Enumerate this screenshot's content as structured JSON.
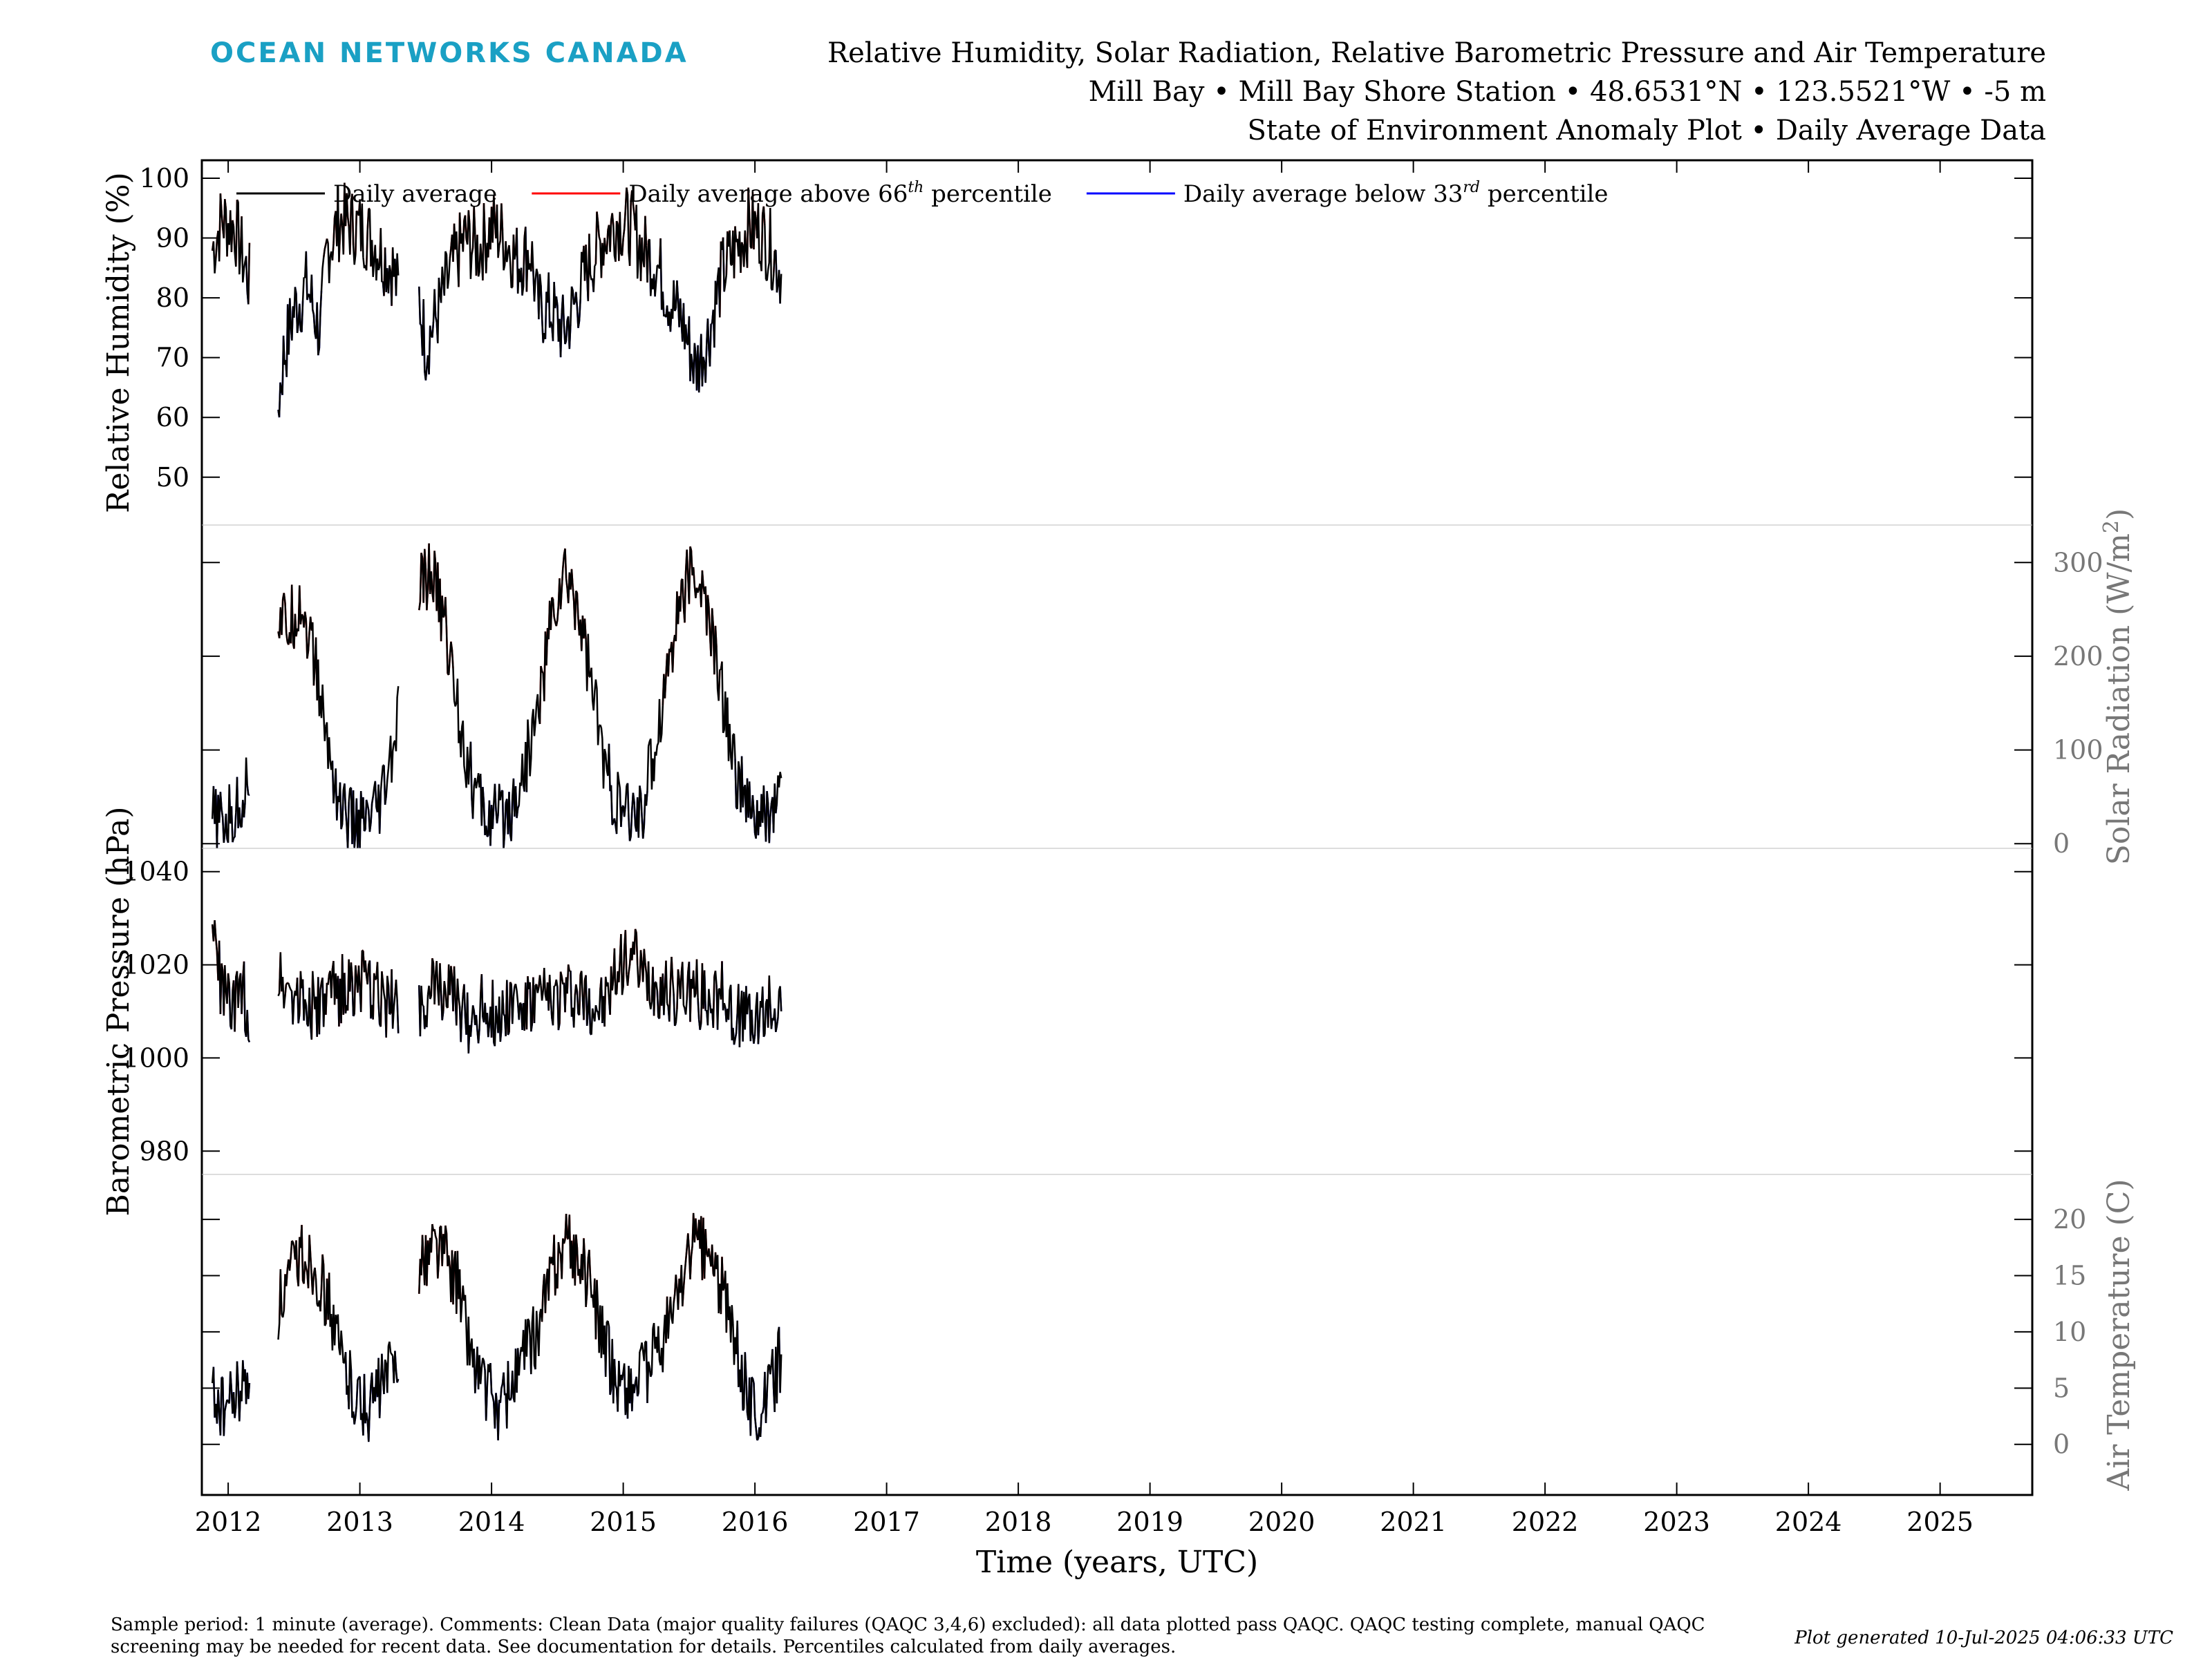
{
  "header": {
    "brand": "OCEAN NETWORKS CANADA",
    "title_line1": "Relative Humidity, Solar Radiation, Relative Barometric Pressure and Air Temperature",
    "title_line2": "Mill Bay • Mill Bay Shore Station • 48.6531°N • 123.5521°W • -5 m",
    "title_line3": "State of Environment Anomaly Plot • Daily Average Data"
  },
  "footer": {
    "note": "Sample period: 1 minute (average). Comments: Clean Data (major quality failures (QAQC 3,4,6) excluded): all data plotted pass QAQC. QAQC testing complete, manual QAQC screening may be needed for recent data. See documentation for details. Percentiles calculated from daily averages.",
    "generated": "Plot generated 10-Jul-2025 04:06:33 UTC"
  },
  "colors": {
    "average": "#000000",
    "above": "#ff0000",
    "below": "#0000ff",
    "right_axis": "#777777",
    "brand": "#1aa0c4"
  },
  "chart_data": {
    "type": "line",
    "xlabel": "Time (years, UTC)",
    "x_ticks": [
      "2012",
      "2013",
      "2014",
      "2015",
      "2016",
      "2017",
      "2018",
      "2019",
      "2020",
      "2021",
      "2022",
      "2023",
      "2024",
      "2025"
    ],
    "xlim": [
      2011.8,
      2025.7
    ],
    "legend": {
      "placement": "top-left",
      "entries": [
        {
          "label": "Daily average",
          "sup": "",
          "suffix": "",
          "color": "#000000"
        },
        {
          "label": "Daily average above 66",
          "sup": "th",
          "suffix": " percentile",
          "color": "#ff0000"
        },
        {
          "label": "Daily average below 33",
          "sup": "rd",
          "suffix": " percentile",
          "color": "#0000ff"
        }
      ]
    },
    "panels": [
      {
        "id": "rh",
        "label": "Relative Humidity (%)",
        "label_sup": "",
        "label_after": "",
        "side": "left",
        "ticks": [
          50,
          60,
          70,
          80,
          90,
          100
        ],
        "ylim": [
          42,
          103
        ],
        "points": [
          [
            2011.88,
            88
          ],
          [
            2011.95,
            93
          ],
          [
            2012.05,
            92
          ],
          [
            2012.12,
            86
          ],
          [
            2012.17,
            82
          ],
          [
            2012.38,
            62
          ],
          [
            2012.42,
            70
          ],
          [
            2012.5,
            78
          ],
          [
            2012.6,
            82
          ],
          [
            2012.7,
            74
          ],
          [
            2012.75,
            88
          ],
          [
            2012.85,
            93
          ],
          [
            2012.95,
            92
          ],
          [
            2013.05,
            91
          ],
          [
            2013.15,
            88
          ],
          [
            2013.25,
            85
          ],
          [
            2013.3,
            80
          ],
          [
            2013.45,
            80
          ],
          [
            2013.5,
            72
          ],
          [
            2013.6,
            78
          ],
          [
            2013.7,
            85
          ],
          [
            2013.8,
            90
          ],
          [
            2013.9,
            88
          ],
          [
            2014.0,
            92
          ],
          [
            2014.1,
            90
          ],
          [
            2014.2,
            86
          ],
          [
            2014.3,
            88
          ],
          [
            2014.35,
            78
          ],
          [
            2014.45,
            78
          ],
          [
            2014.55,
            74
          ],
          [
            2014.65,
            80
          ],
          [
            2014.75,
            86
          ],
          [
            2014.85,
            90
          ],
          [
            2014.95,
            93
          ],
          [
            2015.05,
            92
          ],
          [
            2015.15,
            88
          ],
          [
            2015.25,
            86
          ],
          [
            2015.35,
            80
          ],
          [
            2015.45,
            76
          ],
          [
            2015.55,
            68
          ],
          [
            2015.65,
            74
          ],
          [
            2015.75,
            84
          ],
          [
            2015.85,
            88
          ],
          [
            2015.95,
            92
          ],
          [
            2016.05,
            91
          ],
          [
            2016.15,
            87
          ],
          [
            2016.2,
            84
          ]
        ]
      },
      {
        "id": "solar",
        "label": "Solar Radiation (W/m",
        "label_sup": "2",
        "label_after": ")",
        "side": "right",
        "ticks": [
          0,
          100,
          200,
          300
        ],
        "ylim": [
          -5,
          340
        ],
        "points": [
          [
            2011.88,
            25
          ],
          [
            2011.95,
            20
          ],
          [
            2012.05,
            30
          ],
          [
            2012.12,
            55
          ],
          [
            2012.17,
            85
          ],
          [
            2012.38,
            240
          ],
          [
            2012.45,
            230
          ],
          [
            2012.55,
            260
          ],
          [
            2012.65,
            200
          ],
          [
            2012.75,
            110
          ],
          [
            2012.85,
            40
          ],
          [
            2012.95,
            20
          ],
          [
            2013.05,
            18
          ],
          [
            2013.15,
            35
          ],
          [
            2013.25,
            95
          ],
          [
            2013.3,
            140
          ],
          [
            2013.45,
            270
          ],
          [
            2013.55,
            290
          ],
          [
            2013.65,
            230
          ],
          [
            2013.75,
            140
          ],
          [
            2013.85,
            65
          ],
          [
            2013.95,
            30
          ],
          [
            2014.05,
            25
          ],
          [
            2014.15,
            40
          ],
          [
            2014.25,
            80
          ],
          [
            2014.35,
            140
          ],
          [
            2014.45,
            235
          ],
          [
            2014.55,
            285
          ],
          [
            2014.65,
            260
          ],
          [
            2014.75,
            180
          ],
          [
            2014.85,
            90
          ],
          [
            2014.95,
            40
          ],
          [
            2015.05,
            25
          ],
          [
            2015.15,
            40
          ],
          [
            2015.25,
            110
          ],
          [
            2015.35,
            200
          ],
          [
            2015.45,
            270
          ],
          [
            2015.55,
            290
          ],
          [
            2015.65,
            240
          ],
          [
            2015.75,
            160
          ],
          [
            2015.85,
            80
          ],
          [
            2015.95,
            35
          ],
          [
            2016.05,
            22
          ],
          [
            2016.15,
            40
          ],
          [
            2016.2,
            70
          ]
        ]
      },
      {
        "id": "pressure",
        "label": "Barometric Pressure (hPa)",
        "label_sup": "",
        "label_after": "",
        "side": "left",
        "ticks": [
          980,
          1000,
          1020,
          1040
        ],
        "ylim": [
          975,
          1045
        ],
        "points": [
          [
            2011.88,
            1028
          ],
          [
            2011.95,
            1015
          ],
          [
            2012.05,
            1010
          ],
          [
            2012.12,
            1015
          ],
          [
            2012.17,
            1005
          ],
          [
            2012.38,
            1018
          ],
          [
            2012.5,
            1014
          ],
          [
            2012.6,
            1012
          ],
          [
            2012.7,
            1010
          ],
          [
            2012.8,
            1014
          ],
          [
            2012.9,
            1015
          ],
          [
            2013.0,
            1016
          ],
          [
            2013.1,
            1014
          ],
          [
            2013.2,
            1012
          ],
          [
            2013.3,
            1013
          ],
          [
            2013.45,
            1012
          ],
          [
            2013.55,
            1014
          ],
          [
            2013.65,
            1016
          ],
          [
            2013.75,
            1010
          ],
          [
            2013.85,
            1008
          ],
          [
            2013.95,
            1012
          ],
          [
            2014.05,
            1008
          ],
          [
            2014.15,
            1013
          ],
          [
            2014.25,
            1010
          ],
          [
            2014.35,
            1012
          ],
          [
            2014.45,
            1012
          ],
          [
            2014.55,
            1014
          ],
          [
            2014.65,
            1013
          ],
          [
            2014.75,
            1012
          ],
          [
            2014.85,
            1010
          ],
          [
            2014.95,
            1018
          ],
          [
            2015.05,
            1024
          ],
          [
            2015.15,
            1017
          ],
          [
            2015.25,
            1016
          ],
          [
            2015.35,
            1014
          ],
          [
            2015.45,
            1015
          ],
          [
            2015.55,
            1014
          ],
          [
            2015.65,
            1013
          ],
          [
            2015.75,
            1014
          ],
          [
            2015.85,
            1010
          ],
          [
            2015.95,
            1008
          ],
          [
            2016.05,
            1008
          ],
          [
            2016.15,
            1012
          ],
          [
            2016.2,
            1010
          ]
        ]
      },
      {
        "id": "temp",
        "label": "Air Temperature (C)",
        "label_sup": "",
        "label_after": "",
        "side": "right",
        "ticks": [
          0,
          5,
          10,
          15,
          20
        ],
        "ylim": [
          -4.5,
          24
        ],
        "points": [
          [
            2011.88,
            5
          ],
          [
            2011.95,
            3
          ],
          [
            2012.05,
            4
          ],
          [
            2012.12,
            5
          ],
          [
            2012.17,
            6
          ],
          [
            2012.38,
            12
          ],
          [
            2012.45,
            14
          ],
          [
            2012.55,
            17
          ],
          [
            2012.65,
            16
          ],
          [
            2012.75,
            13
          ],
          [
            2012.85,
            8
          ],
          [
            2012.95,
            5
          ],
          [
            2013.05,
            3
          ],
          [
            2013.15,
            5
          ],
          [
            2013.25,
            7
          ],
          [
            2013.3,
            9
          ],
          [
            2013.45,
            15
          ],
          [
            2013.55,
            18
          ],
          [
            2013.65,
            17
          ],
          [
            2013.75,
            14
          ],
          [
            2013.85,
            8
          ],
          [
            2013.95,
            5
          ],
          [
            2014.05,
            3
          ],
          [
            2014.15,
            5
          ],
          [
            2014.25,
            8
          ],
          [
            2014.35,
            10
          ],
          [
            2014.45,
            15
          ],
          [
            2014.55,
            18
          ],
          [
            2014.65,
            17
          ],
          [
            2014.75,
            14
          ],
          [
            2014.85,
            9
          ],
          [
            2014.95,
            6
          ],
          [
            2015.05,
            5
          ],
          [
            2015.15,
            6
          ],
          [
            2015.25,
            8
          ],
          [
            2015.35,
            11
          ],
          [
            2015.45,
            15
          ],
          [
            2015.55,
            18
          ],
          [
            2015.65,
            17
          ],
          [
            2015.75,
            14
          ],
          [
            2015.85,
            9
          ],
          [
            2015.95,
            4
          ],
          [
            2016.05,
            3
          ],
          [
            2016.15,
            6
          ],
          [
            2016.2,
            8
          ]
        ]
      }
    ]
  }
}
